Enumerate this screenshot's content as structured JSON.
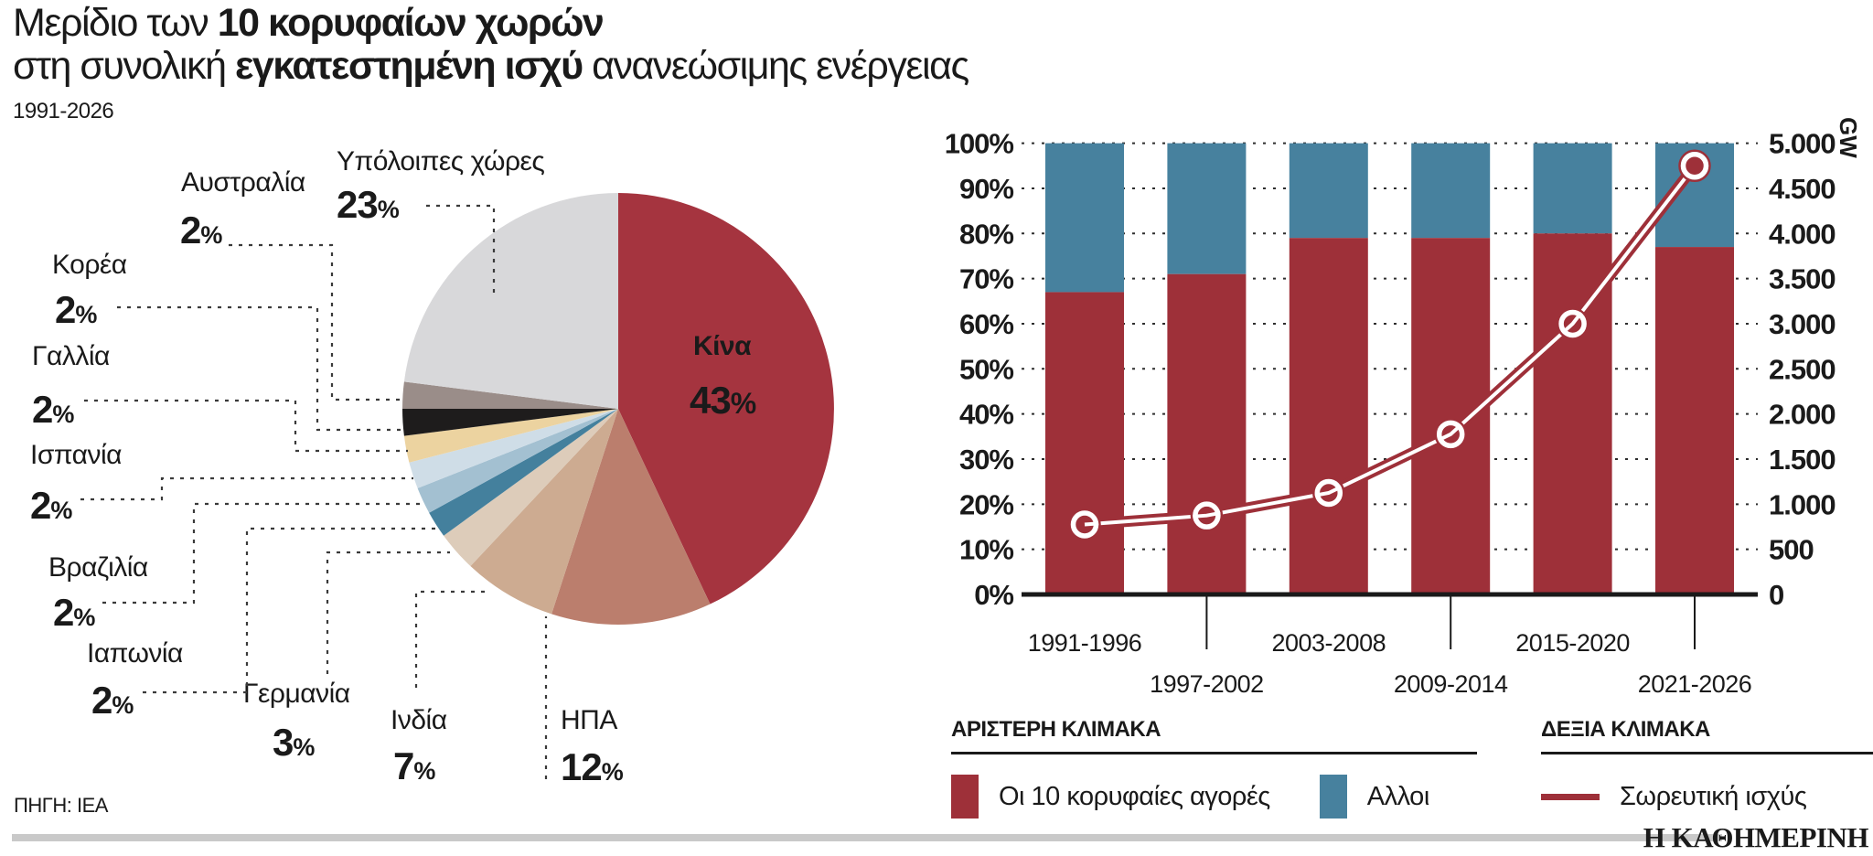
{
  "title": {
    "l1a": "Μερίδιο των ",
    "l1b": "10 κορυφαίων χωρών",
    "l2a": "στη συνολική ",
    "l2b": "εγκατεστημένη ισχύ",
    "l2c": " ανανεώσιμης ενέργειας",
    "period": "1991-2026"
  },
  "legend": {
    "left_header": "ΑΡΙΣΤΕΡΗ ΚΛΙΜΑΚΑ",
    "right_header": "ΔΕΞΙΑ ΚΛΙΜΑΚΑ"
  },
  "footer": {
    "source": "ΠΗΓΗ: IEA",
    "brand": "Η ΚΑΘΗΜΕΡΙΝΗ"
  },
  "chart_data": [
    {
      "type": "pie",
      "title": "Μερίδιο των 10 κορυφαίων χωρών στη συνολική εγκατεστημένη ισχύ ανανεώσιμης ενέργειας, 1991-2026",
      "percent_suffix": "%",
      "slices": [
        {
          "label": "Κίνα",
          "value": 43,
          "color": "#a5343f"
        },
        {
          "label": "ΗΠΑ",
          "value": 12,
          "color": "#bb7e6d"
        },
        {
          "label": "Ινδία",
          "value": 7,
          "color": "#cdab91"
        },
        {
          "label": "Γερμανία",
          "value": 3,
          "color": "#ddccba"
        },
        {
          "label": "Ιαπωνία",
          "value": 2,
          "color": "#44809d"
        },
        {
          "label": "Βραζιλία",
          "value": 2,
          "color": "#a3c0d1"
        },
        {
          "label": "Ισπανία",
          "value": 2,
          "color": "#cfdde7"
        },
        {
          "label": "Γαλλία",
          "value": 2,
          "color": "#ecd3a0"
        },
        {
          "label": "Κορέα",
          "value": 2,
          "color": "#1e1c1c"
        },
        {
          "label": "Αυστραλία",
          "value": 2,
          "color": "#9a8d89"
        },
        {
          "label": "Υπόλοιπες χώρες",
          "value": 23,
          "color": "#d8d8da"
        }
      ]
    },
    {
      "type": "bar",
      "categories": [
        "1991-1996",
        "1997-2002",
        "2003-2008",
        "2009-2014",
        "2015-2020",
        "2021-2026"
      ],
      "series": [
        {
          "name": "Οι 10 κορυφαίες αγορές",
          "type": "bar",
          "axis": "left",
          "color": "#9e3039",
          "values": [
            67,
            71,
            79,
            79,
            80,
            77
          ]
        },
        {
          "name": "Αλλοι",
          "type": "bar",
          "axis": "left",
          "color": "#47819e",
          "values": [
            33,
            29,
            21,
            21,
            20,
            23
          ]
        },
        {
          "name": "Σωρευτική ισχύς",
          "type": "line",
          "axis": "right",
          "color": "#9e3039",
          "values": [
            775,
            875,
            1125,
            1775,
            3000,
            4750
          ]
        }
      ],
      "left_axis": {
        "suffix": "%",
        "min": 0,
        "max": 100,
        "step": 10
      },
      "right_axis": {
        "unit": "GW",
        "min": 0,
        "max": 5000,
        "step": 500
      },
      "grid": true,
      "legend_position": "bottom"
    }
  ]
}
